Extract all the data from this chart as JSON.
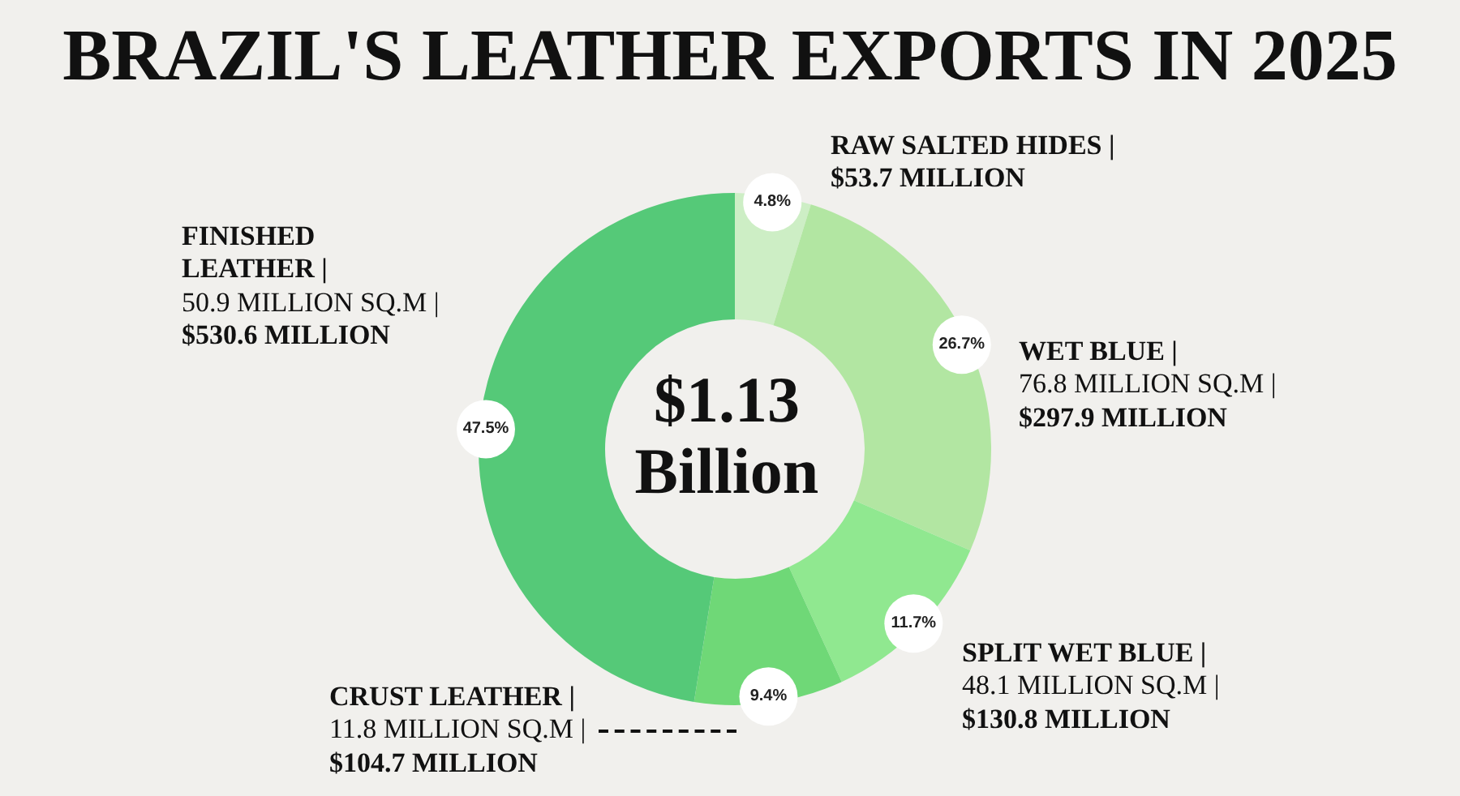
{
  "chart_data": {
    "type": "donut",
    "title": "BRAZIL'S LEATHER EXPORTS IN 2025",
    "categories": [
      "RAW SALTED HIDES |",
      "WET BLUE |",
      "SPLIT WET BLUE |",
      "CRUST LEATHER |",
      "FINISHED LEATHER |"
    ],
    "values": [
      4.8,
      26.7,
      11.7,
      9.4,
      47.5
    ],
    "colors": [
      "#cdeec5",
      "#b2e6a2",
      "#90e890",
      "#6fd877",
      "#55c978"
    ],
    "value_labels": [
      "4.8%",
      "26.7%",
      "11.7%",
      "9.4%",
      "47.5%"
    ],
    "annotations": [
      "$1.13 Billion",
      {
        "text": "$53.7 MILLION",
        "x": "RAW SALTED HIDES |"
      },
      {
        "text": "76.8 MILLION SQ.M |",
        "x": "WET BLUE |"
      },
      {
        "text": "$297.9 MILLION",
        "x": "WET BLUE |"
      },
      {
        "text": "48.1 MILLION SQ.M |",
        "x": "SPLIT WET BLUE |"
      },
      {
        "text": "$130.8 MILLION",
        "x": "SPLIT WET BLUE |"
      },
      {
        "text": "11.8 MILLION SQ.M |",
        "x": "CRUST LEATHER |"
      },
      {
        "text": "$104.7 MILLION",
        "x": "CRUST LEATHER |"
      },
      {
        "text": "50.9 MILLION SQ.M |",
        "x": "FINISHED LEATHER |"
      },
      {
        "text": "$530.6 MILLION",
        "x": "FINISHED LEATHER |"
      }
    ]
  }
}
